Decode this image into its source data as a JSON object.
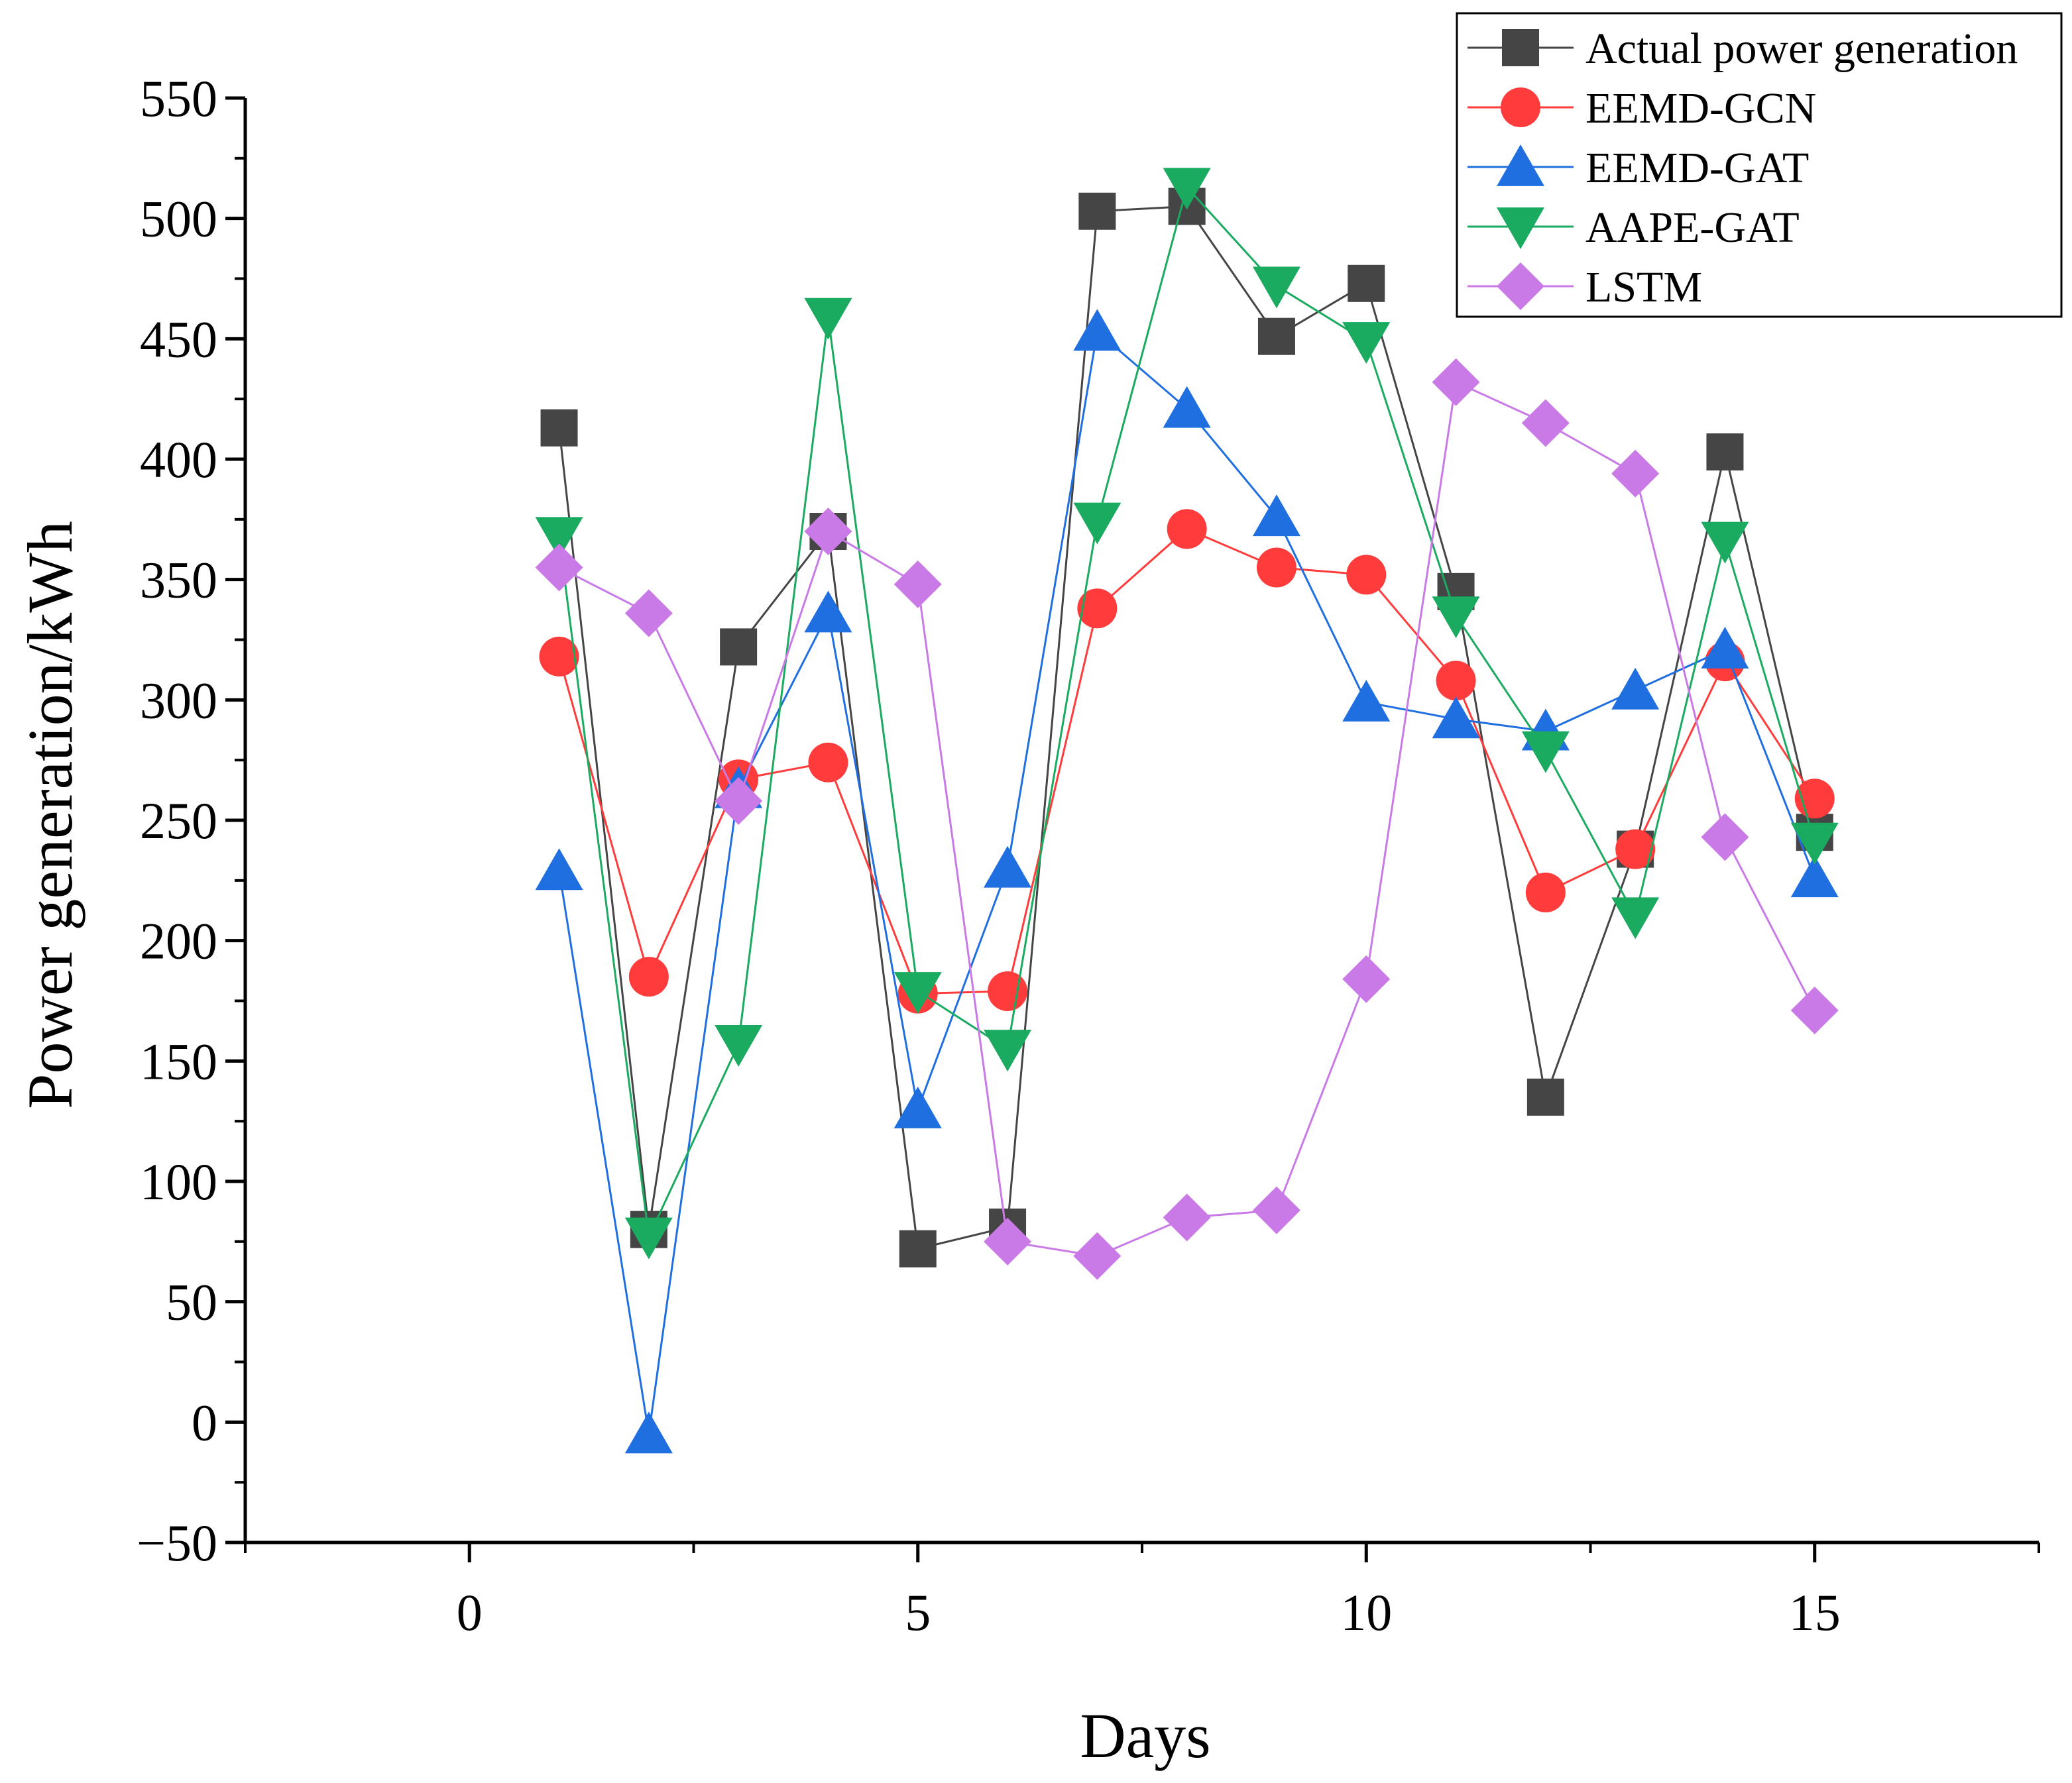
{
  "chart_data": {
    "type": "line",
    "title": "",
    "xlabel": "Days",
    "ylabel": "Power generation/kWh",
    "xlim": [
      -2.5,
      17.5
    ],
    "ylim": [
      -50,
      550
    ],
    "xticks": [
      0,
      5,
      10,
      15
    ],
    "yticks": [
      -50,
      0,
      50,
      100,
      150,
      200,
      250,
      300,
      350,
      400,
      450,
      500,
      550
    ],
    "xtick_labels": [
      "0",
      "5",
      "10",
      "15"
    ],
    "ytick_labels": [
      "−50",
      "0",
      "50",
      "100",
      "150",
      "200",
      "250",
      "300",
      "350",
      "400",
      "450",
      "500",
      "550"
    ],
    "legend_position": "top-right",
    "x": [
      1,
      2,
      3,
      4,
      5,
      6,
      7,
      8,
      9,
      10,
      11,
      12,
      13,
      14,
      15
    ],
    "series": [
      {
        "name": "Actual power generation",
        "marker": "square",
        "color": "#454545",
        "values": [
          413,
          80,
          322,
          370,
          72,
          81,
          503,
          505,
          451,
          473,
          345,
          135,
          238,
          403,
          245
        ]
      },
      {
        "name": "EEMD-GCN",
        "marker": "circle",
        "color": "#ff3b3b",
        "values": [
          318,
          185,
          267,
          274,
          178,
          179,
          338,
          371,
          355,
          352,
          308,
          220,
          238,
          316,
          259
        ]
      },
      {
        "name": "EEMD-GAT",
        "marker": "triangle-up",
        "color": "#1f6fe0",
        "values": [
          229,
          -5,
          263,
          336,
          130,
          230,
          453,
          421,
          376,
          299,
          292,
          287,
          304,
          321,
          226
        ]
      },
      {
        "name": "AAPE-GAT",
        "marker": "triangle-down",
        "color": "#1aaa60",
        "values": [
          368,
          77,
          157,
          459,
          179,
          155,
          374,
          513,
          472,
          449,
          335,
          279,
          210,
          366,
          241
        ]
      },
      {
        "name": "LSTM",
        "marker": "diamond",
        "color": "#c97ae6",
        "values": [
          355,
          336,
          258,
          370,
          348,
          75,
          69,
          85,
          88,
          184,
          432,
          415,
          394,
          243,
          171
        ]
      }
    ]
  }
}
